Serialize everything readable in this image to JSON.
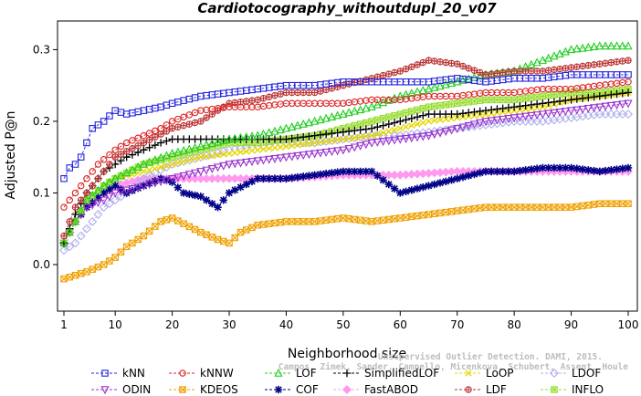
{
  "chart_data": {
    "type": "line",
    "title": "Cardiotocography_withoutdupl_20_v07",
    "xlabel": "Neighborhood size",
    "ylabel": "Adjusted P@n",
    "xlim": [
      1,
      100
    ],
    "ylim": [
      -0.065,
      0.34
    ],
    "xticks": [
      1,
      10,
      20,
      30,
      40,
      50,
      60,
      70,
      80,
      90,
      100
    ],
    "yticks": [
      0.0,
      0.1,
      0.2,
      0.3
    ],
    "ytick_labels": [
      "0.0",
      "0.1",
      "0.2",
      "0.3"
    ],
    "grid": false,
    "legend_position": "bottom",
    "series": [
      {
        "name": "kNN",
        "color": "#2222dd",
        "marker": "square",
        "line": "dashed",
        "x": [
          1,
          2,
          3,
          4,
          5,
          6,
          7,
          8,
          10,
          12,
          15,
          18,
          20,
          25,
          30,
          35,
          40,
          45,
          50,
          55,
          60,
          65,
          70,
          75,
          80,
          85,
          90,
          95,
          100
        ],
        "y": [
          0.12,
          0.135,
          0.14,
          0.15,
          0.17,
          0.19,
          0.195,
          0.2,
          0.215,
          0.21,
          0.215,
          0.22,
          0.225,
          0.235,
          0.24,
          0.245,
          0.25,
          0.25,
          0.255,
          0.255,
          0.255,
          0.255,
          0.26,
          0.255,
          0.26,
          0.26,
          0.265,
          0.265,
          0.265
        ]
      },
      {
        "name": "kNNW",
        "color": "#dd2222",
        "marker": "circle",
        "line": "dashed",
        "x": [
          1,
          2,
          3,
          5,
          7,
          10,
          12,
          15,
          18,
          20,
          25,
          30,
          35,
          40,
          45,
          50,
          55,
          60,
          65,
          70,
          75,
          80,
          85,
          90,
          95,
          100
        ],
        "y": [
          0.08,
          0.09,
          0.1,
          0.12,
          0.14,
          0.16,
          0.17,
          0.18,
          0.19,
          0.2,
          0.215,
          0.22,
          0.22,
          0.225,
          0.225,
          0.225,
          0.23,
          0.23,
          0.235,
          0.235,
          0.24,
          0.24,
          0.245,
          0.245,
          0.25,
          0.255
        ]
      },
      {
        "name": "LOF",
        "color": "#22cc22",
        "marker": "triangle-up",
        "line": "dashed",
        "x": [
          1,
          3,
          5,
          8,
          10,
          15,
          20,
          25,
          30,
          35,
          40,
          45,
          50,
          55,
          60,
          65,
          70,
          75,
          80,
          85,
          90,
          95,
          100
        ],
        "y": [
          0.03,
          0.06,
          0.09,
          0.11,
          0.12,
          0.14,
          0.155,
          0.165,
          0.175,
          0.18,
          0.19,
          0.2,
          0.21,
          0.22,
          0.235,
          0.245,
          0.255,
          0.265,
          0.27,
          0.285,
          0.3,
          0.305,
          0.305
        ]
      },
      {
        "name": "SimplifiedLOF",
        "color": "#000000",
        "marker": "plus",
        "line": "dashed",
        "x": [
          1,
          3,
          5,
          8,
          10,
          12,
          15,
          18,
          20,
          25,
          30,
          35,
          40,
          45,
          50,
          55,
          60,
          65,
          70,
          75,
          80,
          85,
          90,
          95,
          100
        ],
        "y": [
          0.03,
          0.07,
          0.1,
          0.13,
          0.14,
          0.15,
          0.16,
          0.17,
          0.175,
          0.175,
          0.175,
          0.175,
          0.175,
          0.18,
          0.185,
          0.19,
          0.2,
          0.21,
          0.21,
          0.215,
          0.22,
          0.225,
          0.23,
          0.235,
          0.24
        ]
      },
      {
        "name": "LoOP",
        "color": "#e6d800",
        "marker": "x",
        "line": "dashed",
        "x": [
          1,
          3,
          5,
          8,
          10,
          15,
          20,
          25,
          30,
          35,
          40,
          45,
          50,
          55,
          60,
          65,
          70,
          75,
          80,
          85,
          90,
          95,
          100
        ],
        "y": [
          0.03,
          0.06,
          0.09,
          0.11,
          0.12,
          0.13,
          0.14,
          0.15,
          0.155,
          0.16,
          0.165,
          0.17,
          0.175,
          0.18,
          0.19,
          0.2,
          0.205,
          0.21,
          0.215,
          0.22,
          0.23,
          0.235,
          0.24
        ]
      },
      {
        "name": "LDOF",
        "color": "#b0b0ee",
        "marker": "diamond",
        "line": "dashed",
        "x": [
          1,
          3,
          5,
          8,
          10,
          12,
          15,
          20,
          25,
          30,
          35,
          40,
          45,
          50,
          55,
          60,
          65,
          70,
          75,
          80,
          85,
          90,
          95,
          100
        ],
        "y": [
          0.02,
          0.03,
          0.05,
          0.08,
          0.09,
          0.1,
          0.12,
          0.14,
          0.15,
          0.16,
          0.165,
          0.17,
          0.17,
          0.175,
          0.18,
          0.18,
          0.185,
          0.19,
          0.195,
          0.2,
          0.2,
          0.205,
          0.21,
          0.21
        ]
      },
      {
        "name": "ODIN",
        "color": "#9933cc",
        "marker": "triangle-down",
        "line": "dashed",
        "x": [
          1,
          3,
          5,
          8,
          10,
          15,
          20,
          25,
          30,
          35,
          40,
          45,
          50,
          55,
          60,
          65,
          70,
          75,
          80,
          85,
          90,
          95,
          100
        ],
        "y": [
          0.03,
          0.06,
          0.08,
          0.09,
          0.1,
          0.11,
          0.12,
          0.13,
          0.14,
          0.145,
          0.15,
          0.155,
          0.16,
          0.17,
          0.175,
          0.18,
          0.19,
          0.2,
          0.205,
          0.21,
          0.215,
          0.22,
          0.225
        ]
      },
      {
        "name": "KDEOS",
        "color": "#f0a000",
        "marker": "square-x",
        "line": "dashed",
        "x": [
          1,
          3,
          5,
          8,
          10,
          12,
          15,
          18,
          20,
          25,
          28,
          30,
          32,
          35,
          40,
          45,
          50,
          55,
          60,
          65,
          70,
          75,
          80,
          85,
          90,
          95,
          100
        ],
        "y": [
          -0.02,
          -0.015,
          -0.01,
          0.0,
          0.01,
          0.025,
          0.04,
          0.06,
          0.065,
          0.045,
          0.035,
          0.03,
          0.045,
          0.055,
          0.06,
          0.06,
          0.065,
          0.06,
          0.065,
          0.07,
          0.075,
          0.08,
          0.08,
          0.08,
          0.08,
          0.085,
          0.085
        ]
      },
      {
        "name": "COF",
        "color": "#000088",
        "marker": "asterisk",
        "line": "dashed",
        "x": [
          1,
          3,
          5,
          8,
          10,
          12,
          15,
          18,
          20,
          22,
          25,
          28,
          30,
          35,
          40,
          45,
          50,
          55,
          60,
          65,
          70,
          75,
          80,
          85,
          90,
          95,
          100
        ],
        "y": [
          0.03,
          0.06,
          0.08,
          0.1,
          0.11,
          0.1,
          0.11,
          0.12,
          0.115,
          0.1,
          0.095,
          0.08,
          0.1,
          0.12,
          0.12,
          0.125,
          0.13,
          0.13,
          0.1,
          0.11,
          0.12,
          0.13,
          0.13,
          0.135,
          0.135,
          0.13,
          0.135
        ]
      },
      {
        "name": "FastABOD",
        "color": "#ff99ee",
        "marker": "diamond-filled",
        "line": "dashed",
        "x": [
          1,
          3,
          5,
          8,
          10,
          15,
          20,
          25,
          30,
          40,
          50,
          60,
          70,
          80,
          90,
          100
        ],
        "y": [
          0.03,
          0.06,
          0.08,
          0.1,
          0.11,
          0.12,
          0.12,
          0.12,
          0.12,
          0.12,
          0.125,
          0.125,
          0.13,
          0.13,
          0.13,
          0.13
        ]
      },
      {
        "name": "LDF",
        "color": "#bb3333",
        "marker": "circle-plus",
        "line": "dashed",
        "x": [
          1,
          3,
          5,
          8,
          10,
          15,
          20,
          25,
          30,
          35,
          40,
          45,
          50,
          55,
          60,
          65,
          70,
          75,
          80,
          85,
          90,
          95,
          100
        ],
        "y": [
          0.04,
          0.08,
          0.1,
          0.13,
          0.15,
          0.17,
          0.19,
          0.2,
          0.225,
          0.23,
          0.24,
          0.24,
          0.25,
          0.26,
          0.27,
          0.285,
          0.28,
          0.265,
          0.27,
          0.27,
          0.275,
          0.28,
          0.285
        ]
      },
      {
        "name": "INFLO",
        "color": "#99dd33",
        "marker": "square-star",
        "line": "dashed",
        "x": [
          1,
          3,
          5,
          8,
          10,
          15,
          20,
          25,
          30,
          35,
          40,
          45,
          50,
          55,
          60,
          65,
          70,
          75,
          80,
          85,
          90,
          95,
          100
        ],
        "y": [
          0.03,
          0.06,
          0.09,
          0.11,
          0.12,
          0.14,
          0.15,
          0.16,
          0.17,
          0.17,
          0.175,
          0.18,
          0.19,
          0.2,
          0.21,
          0.22,
          0.225,
          0.23,
          0.23,
          0.235,
          0.24,
          0.24,
          0.245
        ]
      }
    ],
    "legend_order": [
      [
        "kNN",
        "kNNW",
        "LOF",
        "SimplifiedLOF",
        "LoOP",
        "LDOF"
      ],
      [
        "ODIN",
        "KDEOS",
        "COF",
        "FastABOD",
        "LDF",
        "INFLO"
      ]
    ]
  },
  "watermark": {
    "line1": "Unsupervised Outlier Detection. DAMI, 2015.",
    "line2": "Campos, Zimek, Sander, Campello, Micenkova, Schubert, Assent, Houle"
  }
}
